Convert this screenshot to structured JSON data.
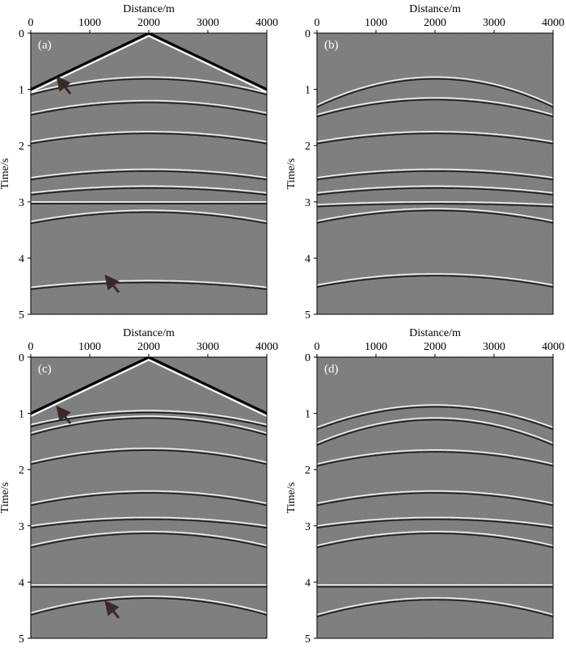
{
  "chart_data": [
    {
      "type": "heatmap",
      "panel_label": "(a)",
      "xlabel": "Distance/m",
      "ylabel": "Time/s",
      "xlim": [
        0,
        4000
      ],
      "ylim": [
        0,
        5
      ],
      "xticks": [
        "0",
        "1000",
        "2000",
        "3000",
        "4000"
      ],
      "yticks": [
        "0",
        "1",
        "2",
        "3",
        "4",
        "5"
      ],
      "direct_wave": {
        "apex_x": 2000,
        "apex_t": 0.0,
        "edge_t": 1.0
      },
      "events": [
        {
          "t0": 0.78,
          "curv": 0.28
        },
        {
          "t0": 1.2,
          "curv": 0.22
        },
        {
          "t0": 1.75,
          "curv": 0.18
        },
        {
          "t0": 2.42,
          "curv": 0.15
        },
        {
          "t0": 2.72,
          "curv": 0.12
        },
        {
          "t0": 3.0,
          "curv": 0.0
        },
        {
          "t0": 3.15,
          "curv": 0.2
        },
        {
          "t0": 4.4,
          "curv": 0.12
        }
      ],
      "arrows": [
        {
          "x": 480,
          "t": 0.82
        },
        {
          "x": 1300,
          "t": 4.35
        }
      ]
    },
    {
      "type": "heatmap",
      "panel_label": "(b)",
      "xlabel": "Distance/m",
      "ylabel": "Time/s",
      "xlim": [
        0,
        4000
      ],
      "ylim": [
        0,
        5
      ],
      "xticks": [
        "0",
        "1000",
        "2000",
        "3000",
        "4000"
      ],
      "yticks": [
        "0",
        "1",
        "2",
        "3",
        "4",
        "5"
      ],
      "events": [
        {
          "t0": 0.78,
          "curv": 0.5
        },
        {
          "t0": 1.15,
          "curv": 0.3
        },
        {
          "t0": 1.75,
          "curv": 0.18
        },
        {
          "t0": 2.42,
          "curv": 0.15
        },
        {
          "t0": 2.72,
          "curv": 0.12
        },
        {
          "t0": 3.0,
          "curv": 0.05
        },
        {
          "t0": 3.12,
          "curv": 0.22
        },
        {
          "t0": 4.28,
          "curv": 0.2
        }
      ]
    },
    {
      "type": "heatmap",
      "panel_label": "(c)",
      "xlabel": "Distance/m",
      "ylabel": "Time/s",
      "xlim": [
        0,
        4000
      ],
      "ylim": [
        0,
        5
      ],
      "xticks": [
        "0",
        "1000",
        "2000",
        "3000",
        "4000"
      ],
      "yticks": [
        "0",
        "1",
        "2",
        "3",
        "4",
        "5"
      ],
      "direct_wave": {
        "apex_x": 2000,
        "apex_t": 0.0,
        "edge_t": 1.0
      },
      "events": [
        {
          "t0": 0.95,
          "curv": 0.25
        },
        {
          "t0": 1.05,
          "curv": 0.3
        },
        {
          "t0": 1.62,
          "curv": 0.25
        },
        {
          "t0": 2.38,
          "curv": 0.22
        },
        {
          "t0": 2.85,
          "curv": 0.15
        },
        {
          "t0": 3.1,
          "curv": 0.25
        },
        {
          "t0": 4.05,
          "curv": 0.0
        },
        {
          "t0": 4.25,
          "curv": 0.3
        }
      ],
      "arrows": [
        {
          "x": 480,
          "t": 0.92
        },
        {
          "x": 1300,
          "t": 4.38
        }
      ]
    },
    {
      "type": "heatmap",
      "panel_label": "(d)",
      "xlabel": "Distance/m",
      "ylabel": "Time/s",
      "xlim": [
        0,
        4000
      ],
      "ylim": [
        0,
        5
      ],
      "xticks": [
        "0",
        "1000",
        "2000",
        "3000",
        "4000"
      ],
      "yticks": [
        "0",
        "1",
        "2",
        "3",
        "4",
        "5"
      ],
      "events": [
        {
          "t0": 0.85,
          "curv": 0.4
        },
        {
          "t0": 1.08,
          "curv": 0.45
        },
        {
          "t0": 1.65,
          "curv": 0.25
        },
        {
          "t0": 2.38,
          "curv": 0.22
        },
        {
          "t0": 2.85,
          "curv": 0.15
        },
        {
          "t0": 3.1,
          "curv": 0.25
        },
        {
          "t0": 4.05,
          "curv": 0.0
        },
        {
          "t0": 4.28,
          "curv": 0.3
        }
      ]
    }
  ]
}
